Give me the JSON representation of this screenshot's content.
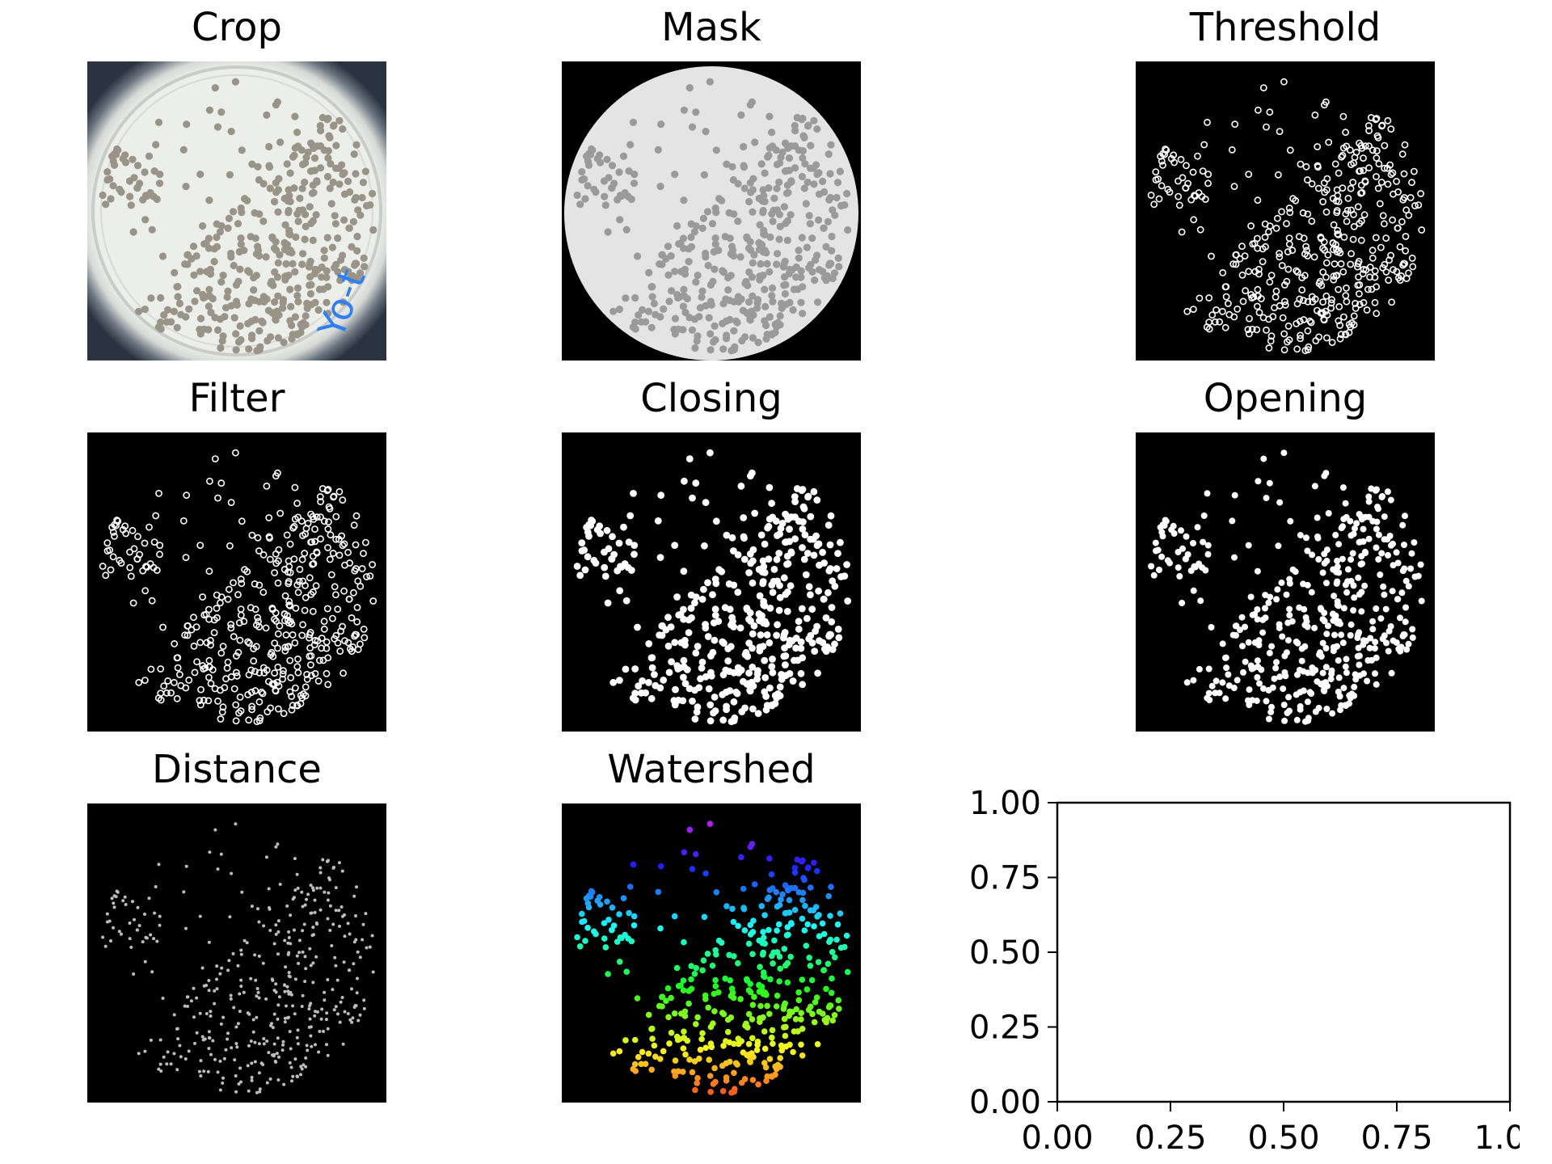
{
  "panels": [
    {
      "title": "Crop"
    },
    {
      "title": "Mask"
    },
    {
      "title": "Threshold"
    },
    {
      "title": "Filter"
    },
    {
      "title": "Closing"
    },
    {
      "title": "Opening"
    },
    {
      "title": "Distance"
    },
    {
      "title": "Watershed"
    }
  ],
  "crop_plate_label": "Yo-t",
  "chart_data": {
    "type": "line",
    "title": "",
    "xlabel": "",
    "ylabel": "",
    "xlim": [
      0,
      1
    ],
    "ylim": [
      0,
      1
    ],
    "xticks": [
      "0.00",
      "0.25",
      "0.50",
      "0.75",
      "1.00"
    ],
    "yticks": [
      "0.00",
      "0.25",
      "0.50",
      "0.75",
      "1.00"
    ],
    "series": [],
    "grid": false
  }
}
